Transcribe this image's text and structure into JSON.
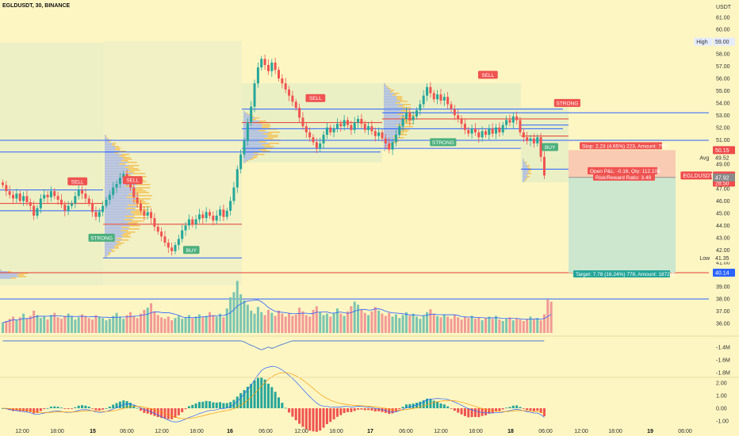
{
  "header": {
    "title": "EGLDUSDT, 30, BINANCE"
  },
  "price_axis": {
    "currency": "USDT",
    "ticks": [
      "61.00",
      "60.00",
      "59.00",
      "58.00",
      "57.00",
      "56.00",
      "55.00",
      "54.00",
      "53.00",
      "52.00",
      "51.00",
      "50.00",
      "49.00",
      "48.00",
      "47.00",
      "46.00",
      "45.00",
      "44.00",
      "43.00",
      "42.00",
      "41.00",
      "40.00",
      "39.00",
      "38.00",
      "37.00",
      "36.00"
    ],
    "tags": [
      {
        "label": "High",
        "value": "59.00",
        "price": 59.0,
        "color": "#e6ecff",
        "text": "#333"
      },
      {
        "label": "Avg",
        "value": "49.52",
        "price": 49.52,
        "color": "#fdf6c3",
        "text": "#333"
      },
      {
        "label": "Low",
        "value": "41.35",
        "price": 41.35,
        "color": "#fdf6c3",
        "text": "#333"
      },
      {
        "label": "",
        "value": "50.15",
        "price": 50.15,
        "color": "#ef4b4b",
        "text": "#fff"
      },
      {
        "label": "EGLDUSDT",
        "value": "48.08",
        "price": 48.08,
        "color": "#ef4b4b",
        "text": "#fff",
        "extra": "28:50"
      },
      {
        "label": "",
        "value": "47.92",
        "price": 47.92,
        "color": "#8a8a8a",
        "text": "#fff"
      },
      {
        "label": "",
        "value": "40.14",
        "price": 40.14,
        "color": "#2962ff",
        "text": "#fff"
      }
    ]
  },
  "obv_axis": {
    "ticks": [
      "-1.4M",
      "-1.6M",
      "-1.8M"
    ]
  },
  "macd_axis": {
    "ticks": [
      "2.00",
      "1.00",
      "0.00",
      "-1.00"
    ]
  },
  "time_axis": {
    "labels": [
      {
        "text": "12:00",
        "bold": false
      },
      {
        "text": "18:00",
        "bold": false
      },
      {
        "text": "15",
        "bold": true
      },
      {
        "text": "06:00",
        "bold": false
      },
      {
        "text": "12:00",
        "bold": false
      },
      {
        "text": "18:00",
        "bold": false
      },
      {
        "text": "16",
        "bold": true
      },
      {
        "text": "06:00",
        "bold": false
      },
      {
        "text": "12:00",
        "bold": false
      },
      {
        "text": "18:00",
        "bold": false
      },
      {
        "text": "17",
        "bold": true
      },
      {
        "text": "06:00",
        "bold": false
      },
      {
        "text": "12:00",
        "bold": false
      },
      {
        "text": "18:00",
        "bold": false
      },
      {
        "text": "18",
        "bold": true
      },
      {
        "text": "06:00",
        "bold": false
      },
      {
        "text": "12:00",
        "bold": false
      },
      {
        "text": "18:00",
        "bold": false
      },
      {
        "text": "19",
        "bold": true
      },
      {
        "text": "06:00",
        "bold": false
      }
    ]
  },
  "position": {
    "stop_label": "Stop: 2.23 (4.65%) 223, Amount: 750",
    "pnl_label": "Open P&L: -0.16, Qty: 112.108",
    "rr_label": "Risk/Reward Ratio: 3.49",
    "target_label": "Target: 7.78 (16.24%) 778, Amount: 1872.2",
    "entry": 47.92,
    "stop": 50.15,
    "target": 40.14,
    "stop_color": "#f8c6b0",
    "target_color": "#c7e6cf"
  },
  "signals": [
    {
      "text": "SELL",
      "type": "sell",
      "slot": 22,
      "price": 47.6
    },
    {
      "text": "SELL",
      "type": "sell",
      "slot": 38,
      "price": 47.7
    },
    {
      "text": "STRONG",
      "type": "buy",
      "slot": 29,
      "price": 43.0
    },
    {
      "text": "BUY",
      "type": "buy",
      "slot": 55,
      "price": 42.0
    },
    {
      "text": "SELL",
      "type": "sell",
      "slot": 91,
      "price": 54.4
    },
    {
      "text": "STRONG",
      "type": "buy",
      "slot": 128,
      "price": 50.8
    },
    {
      "text": "SELL",
      "type": "sell",
      "slot": 141,
      "price": 56.3
    },
    {
      "text": "STRONG",
      "type": "sell",
      "slot": 164,
      "price": 54.0
    },
    {
      "text": "BUY",
      "type": "buy",
      "slot": 159,
      "price": 50.4
    }
  ],
  "colors": {
    "up": "#26a69a",
    "down": "#ef5350",
    "blue_line": "#2962ff",
    "red_line": "#e53935",
    "background": "#fdf6c3"
  },
  "chart_data": {
    "type": "candlestick",
    "symbol": "EGLDUSDT",
    "interval": "30",
    "exchange": "BINANCE",
    "ylim": [
      35.5,
      62.0
    ],
    "high": 59.0,
    "low": 41.35,
    "average": 49.52,
    "last_price": 48.08,
    "close_series": [
      47.3,
      46.8,
      46.5,
      46.2,
      46.6,
      46.0,
      46.4,
      45.9,
      45.6,
      44.8,
      45.4,
      46.2,
      46.5,
      46.3,
      46.8,
      46.4,
      46.1,
      45.7,
      45.2,
      45.6,
      45.8,
      46.4,
      46.9,
      46.6,
      46.2,
      45.8,
      45.1,
      44.7,
      45.1,
      45.6,
      46.1,
      46.5,
      47.1,
      47.4,
      47.9,
      48.2,
      47.6,
      47.1,
      46.3,
      45.8,
      45.2,
      44.8,
      45.1,
      44.6,
      43.9,
      43.5,
      43.1,
      42.6,
      42.2,
      41.9,
      42.4,
      42.9,
      43.6,
      44.0,
      44.5,
      44.1,
      44.5,
      44.9,
      44.6,
      45.1,
      44.8,
      44.4,
      44.8,
      45.3,
      44.7,
      45.2,
      46.0,
      47.1,
      48.6,
      49.8,
      50.9,
      52.4,
      53.7,
      55.6,
      56.9,
      57.6,
      57.1,
      56.6,
      57.3,
      56.7,
      56.0,
      55.6,
      55.1,
      54.6,
      54.1,
      53.6,
      52.8,
      52.1,
      51.6,
      51.2,
      50.8,
      50.3,
      50.7,
      51.4,
      52.0,
      51.6,
      51.9,
      52.3,
      52.1,
      52.6,
      52.2,
      51.8,
      52.4,
      52.7,
      52.3,
      51.8,
      52.1,
      51.7,
      51.3,
      51.6,
      51.1,
      50.7,
      50.2,
      50.8,
      51.4,
      52.1,
      52.7,
      53.2,
      52.6,
      52.9,
      53.4,
      53.9,
      54.6,
      55.3,
      54.8,
      54.3,
      54.7,
      54.2,
      54.5,
      53.9,
      53.5,
      53.0,
      52.7,
      52.3,
      51.8,
      51.5,
      51.9,
      51.6,
      51.2,
      51.7,
      51.4,
      51.9,
      51.5,
      52.0,
      51.6,
      52.2,
      52.6,
      52.4,
      52.9,
      52.6,
      51.6,
      51.2,
      50.9,
      51.1,
      50.7,
      51.2,
      49.6,
      48.08
    ],
    "volume": [
      14,
      16,
      19,
      22,
      17,
      21,
      26,
      19,
      23,
      30,
      24,
      20,
      22,
      18,
      24,
      27,
      21,
      19,
      23,
      26,
      22,
      18,
      21,
      25,
      23,
      20,
      18,
      24,
      22,
      20,
      17,
      19,
      23,
      27,
      22,
      19,
      24,
      28,
      23,
      20,
      26,
      31,
      34,
      40,
      29,
      24,
      21,
      19,
      22,
      17,
      20,
      23,
      19,
      21,
      24,
      20,
      22,
      25,
      21,
      23,
      28,
      24,
      22,
      26,
      21,
      33,
      48,
      55,
      70,
      52,
      44,
      38,
      30,
      26,
      35,
      28,
      24,
      31,
      27,
      23,
      30,
      26,
      22,
      27,
      23,
      25,
      34,
      29,
      24,
      22,
      31,
      36,
      28,
      24,
      26,
      22,
      27,
      33,
      26,
      23,
      29,
      36,
      42,
      38,
      31,
      27,
      24,
      29,
      35,
      30,
      26,
      23,
      27,
      22,
      25,
      20,
      24,
      28,
      23,
      26,
      22,
      19,
      24,
      28,
      32,
      26,
      23,
      21,
      25,
      22,
      19,
      24,
      21,
      18,
      22,
      20,
      23,
      19,
      21,
      17,
      20,
      22,
      19,
      23,
      18,
      16,
      19,
      21,
      17,
      20,
      18,
      16,
      19,
      22,
      18,
      20,
      17,
      25,
      45,
      42
    ],
    "volume_ylim": [
      0,
      80
    ],
    "obv_ylim": [
      -1.85,
      -1.25
    ],
    "macd_ylim": [
      -1.3,
      2.3
    ],
    "position": {
      "entry": 47.92,
      "stop": 50.15,
      "target": 40.14,
      "qty": 112.108,
      "open_pnl": -0.16,
      "risk_reward": 3.49
    }
  }
}
